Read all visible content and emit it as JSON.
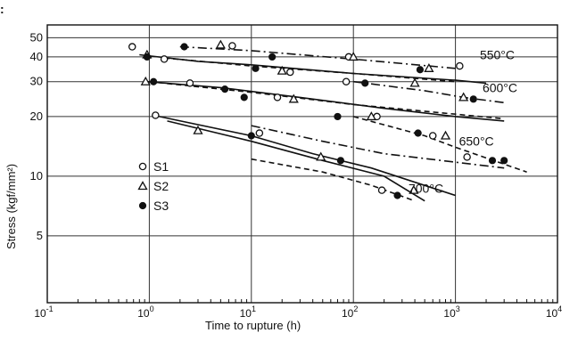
{
  "corner_mark": ":",
  "chart_data": {
    "type": "scatter",
    "xscale": "log",
    "yscale": "log",
    "xlabel": "Time to rupture (h)",
    "ylabel": "Stress (kgf/mm²)",
    "xlim": [
      0.1,
      10000
    ],
    "ylim": [
      2.3,
      58
    ],
    "x_ticks": [
      {
        "v": 0.1,
        "b": "10",
        "e": "-1"
      },
      {
        "v": 1,
        "b": "10",
        "e": "0"
      },
      {
        "v": 10,
        "b": "10",
        "e": "1"
      },
      {
        "v": 100,
        "b": "10",
        "e": "2"
      },
      {
        "v": 1000,
        "b": "10",
        "e": "3"
      },
      {
        "v": 10000,
        "b": "10",
        "e": "4"
      }
    ],
    "y_ticks": [
      {
        "v": 50,
        "label": "50"
      },
      {
        "v": 40,
        "label": "40"
      },
      {
        "v": 30,
        "label": "30"
      },
      {
        "v": 20,
        "label": "20"
      },
      {
        "v": 10,
        "label": "10"
      },
      {
        "v": 5,
        "label": "5"
      }
    ],
    "grid": true,
    "series": [
      {
        "name": "S1",
        "marker": "open-circle",
        "points": [
          [
            0.68,
            45
          ],
          [
            1.4,
            39
          ],
          [
            2.5,
            29.5
          ],
          [
            6.5,
            45.5
          ],
          [
            18,
            25
          ],
          [
            24,
            33.5
          ],
          [
            90,
            40
          ],
          [
            85,
            30
          ],
          [
            170,
            20
          ],
          [
            1100,
            36
          ],
          [
            600,
            16
          ],
          [
            1300,
            12.5
          ],
          [
            190,
            8.5
          ],
          [
            12,
            16.5
          ],
          [
            1.15,
            20.3
          ]
        ]
      },
      {
        "name": "S2",
        "marker": "open-triangle",
        "points": [
          [
            0.95,
            41
          ],
          [
            0.92,
            30
          ],
          [
            5,
            46
          ],
          [
            20,
            34
          ],
          [
            26,
            24.5
          ],
          [
            100,
            40
          ],
          [
            150,
            20
          ],
          [
            400,
            29.5
          ],
          [
            550,
            35
          ],
          [
            1200,
            25
          ],
          [
            800,
            16
          ],
          [
            3,
            17
          ],
          [
            48,
            12.5
          ],
          [
            390,
            8.5
          ]
        ]
      },
      {
        "name": "S3",
        "marker": "filled-circle",
        "points": [
          [
            0.95,
            40
          ],
          [
            1.1,
            30
          ],
          [
            2.2,
            45
          ],
          [
            5.5,
            27.5
          ],
          [
            8.5,
            25
          ],
          [
            11,
            35
          ],
          [
            16,
            40
          ],
          [
            70,
            20
          ],
          [
            130,
            29.5
          ],
          [
            450,
            34.5
          ],
          [
            430,
            16.5
          ],
          [
            1500,
            24.5
          ],
          [
            2300,
            12
          ],
          [
            3000,
            12
          ],
          [
            10,
            16
          ],
          [
            75,
            12
          ],
          [
            270,
            8
          ]
        ]
      }
    ],
    "curves": [
      {
        "label": "550°C",
        "points": [
          [
            0.8,
            41
          ],
          [
            3,
            38
          ],
          [
            10,
            36.5
          ],
          [
            100,
            33
          ],
          [
            1000,
            30.5
          ],
          [
            2000,
            29.5
          ]
        ]
      },
      {
        "label": "600°C",
        "points": [
          [
            0.95,
            30
          ],
          [
            5,
            28
          ],
          [
            30,
            25
          ],
          [
            200,
            22
          ],
          [
            1000,
            20
          ],
          [
            3000,
            19
          ]
        ]
      },
      {
        "label": "650°C",
        "points": [
          [
            1.1,
            20.3
          ],
          [
            10,
            16
          ],
          [
            40,
            13
          ],
          [
            150,
            11
          ],
          [
            1000,
            8
          ]
        ]
      },
      {
        "label": "700°C",
        "points": [
          [
            10,
            12.2
          ],
          [
            50,
            10.5
          ],
          [
            150,
            9
          ],
          [
            400,
            7.5
          ]
        ]
      }
    ]
  }
}
